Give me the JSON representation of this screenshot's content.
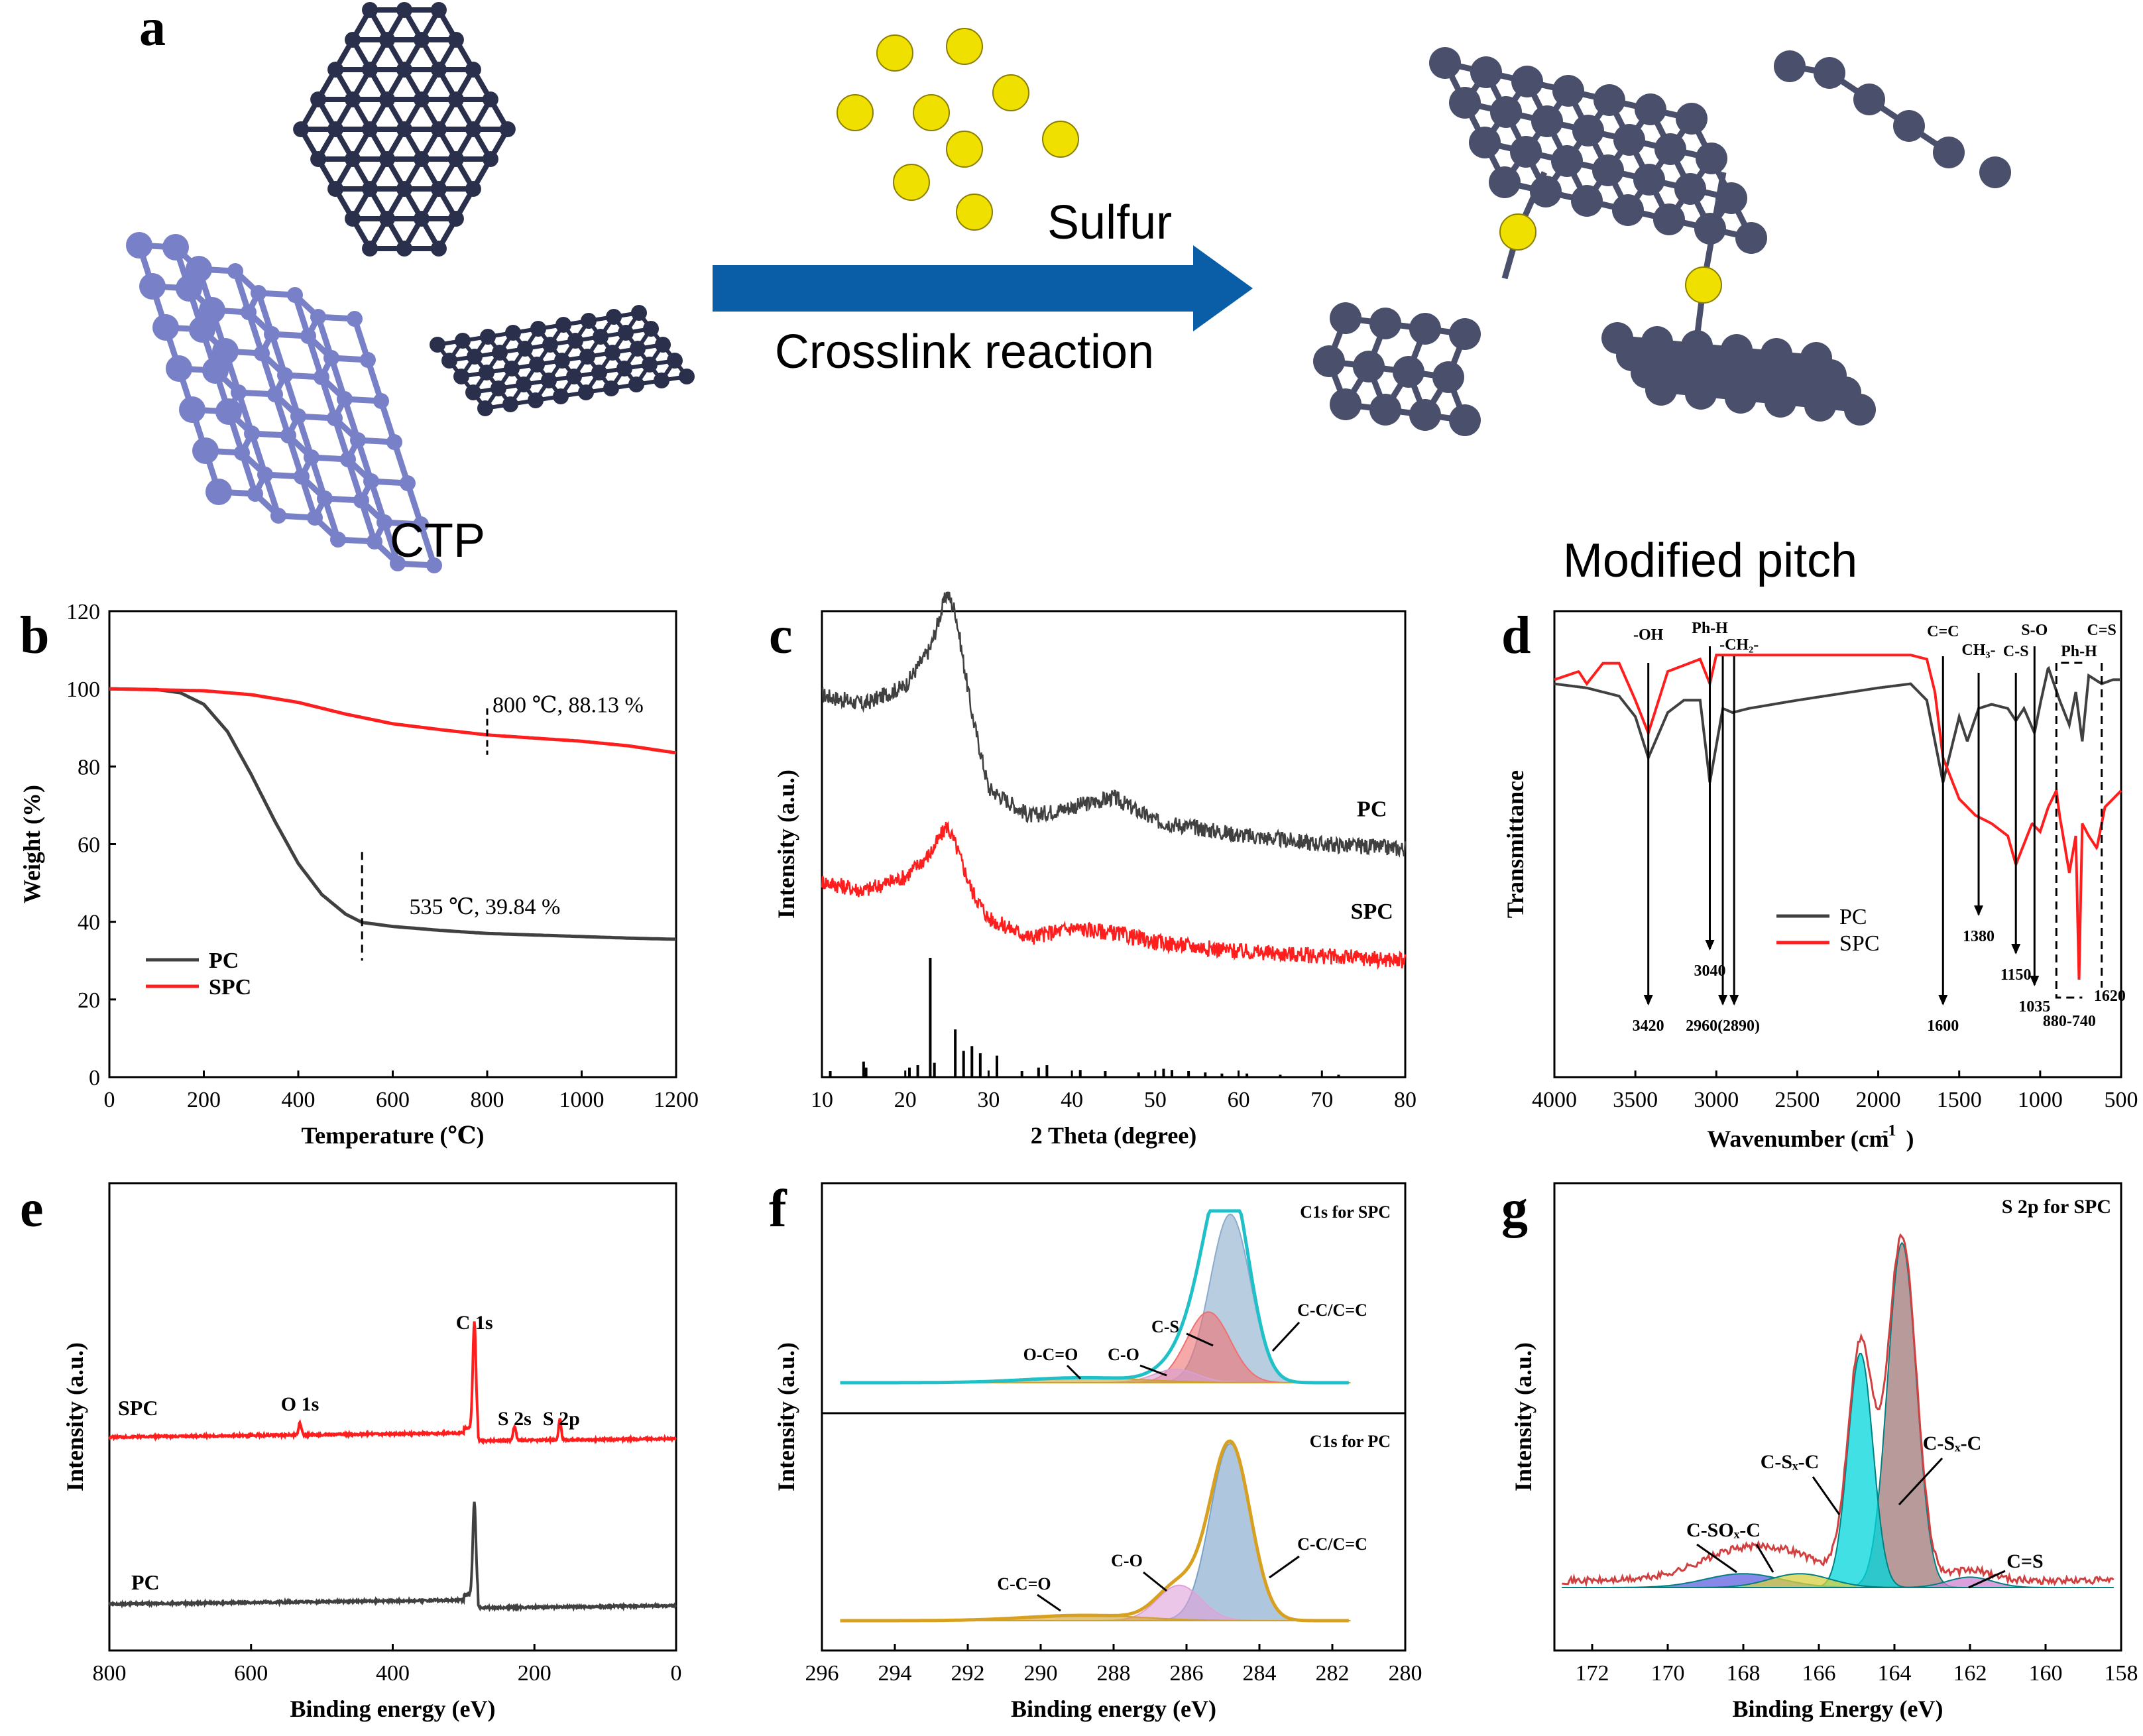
{
  "figure": {
    "panel_labels": [
      "a",
      "b",
      "c",
      "d",
      "e",
      "f",
      "g"
    ],
    "scheme": {
      "sulfur_label": "Sulfur",
      "reaction_label": "Crosslink reaction",
      "ctp_label": "CTP",
      "product_label": "Modified pitch",
      "colors": {
        "ctp_sheet": "#7880c8",
        "pitch_dark": "#2a2f4c",
        "modified": "#4a4f6c",
        "sulfur": "#f0e000",
        "arrow": "#0a5ea8"
      }
    }
  },
  "colors": {
    "pc": "#404040",
    "spc": "#ff1e1e"
  },
  "chart_data": [
    {
      "id": "b",
      "type": "line",
      "title": "",
      "xlabel": "Temperature (℃)",
      "ylabel": "Weight (%)",
      "xlim": [
        0,
        1200
      ],
      "ylim": [
        0,
        120
      ],
      "xticks": [
        0,
        200,
        400,
        600,
        800,
        1000,
        1200
      ],
      "yticks": [
        0,
        20,
        40,
        60,
        80,
        100,
        120
      ],
      "series": [
        {
          "name": "PC",
          "color": "#404040",
          "x": [
            0,
            100,
            150,
            200,
            250,
            300,
            350,
            400,
            450,
            500,
            535,
            600,
            700,
            800,
            900,
            1000,
            1100,
            1200
          ],
          "y": [
            100,
            99.8,
            99,
            96,
            89,
            78,
            66,
            55,
            47,
            42,
            39.84,
            38.8,
            37.8,
            37,
            36.6,
            36.2,
            35.8,
            35.5
          ]
        },
        {
          "name": "SPC",
          "color": "#ff1e1e",
          "x": [
            0,
            200,
            300,
            400,
            500,
            600,
            700,
            800,
            900,
            1000,
            1100,
            1200
          ],
          "y": [
            100,
            99.5,
            98.5,
            96.5,
            93.5,
            91,
            89.5,
            88.13,
            87.3,
            86.5,
            85.3,
            83.5
          ]
        }
      ],
      "annotations": [
        "800 ℃, 88.13 %",
        "535 ℃, 39.84 %"
      ],
      "legend": {
        "position": "bottom-left",
        "entries": [
          "PC",
          "SPC"
        ]
      }
    },
    {
      "id": "c",
      "type": "line",
      "title": "",
      "xlabel": "2 Theta (degree)",
      "ylabel": "Intensity (a.u.)",
      "xlim": [
        10,
        80
      ],
      "xticks": [
        10,
        20,
        30,
        40,
        50,
        60,
        70,
        80
      ],
      "series": [
        {
          "name": "PC",
          "color": "#404040",
          "x": [
            10,
            15,
            20,
            23,
            25,
            26,
            28,
            30,
            35,
            40,
            45,
            50,
            60,
            70,
            80
          ],
          "y": [
            0.82,
            0.8,
            0.84,
            0.92,
            1.04,
            1.0,
            0.78,
            0.62,
            0.56,
            0.58,
            0.6,
            0.55,
            0.52,
            0.5,
            0.49
          ]
        },
        {
          "name": "SPC",
          "color": "#ff1e1e",
          "x": [
            10,
            15,
            20,
            23,
            25,
            26,
            28,
            30,
            35,
            40,
            45,
            50,
            60,
            70,
            80
          ],
          "y": [
            0.42,
            0.4,
            0.43,
            0.48,
            0.54,
            0.5,
            0.4,
            0.34,
            0.3,
            0.32,
            0.31,
            0.29,
            0.27,
            0.26,
            0.25
          ]
        }
      ],
      "reference_peaks": {
        "x": [
          11,
          15,
          15.3,
          20.5,
          21.5,
          23,
          23.5,
          26,
          27,
          28,
          29,
          31,
          34,
          36,
          37,
          41,
          44,
          48,
          51,
          52,
          54,
          56,
          58,
          61,
          65,
          72
        ],
        "h": [
          0.05,
          0.13,
          0.08,
          0.08,
          0.1,
          1.0,
          0.12,
          0.4,
          0.22,
          0.26,
          0.2,
          0.18,
          0.05,
          0.08,
          0.1,
          0.06,
          0.05,
          0.04,
          0.07,
          0.06,
          0.05,
          0.04,
          0.03,
          0.03,
          0.02,
          0.02
        ]
      },
      "curve_labels": [
        "PC",
        "SPC"
      ]
    },
    {
      "id": "d",
      "type": "line",
      "title": "",
      "xlabel": "Wavenumber (cm",
      "xlabel_sup": "-1",
      "xlabel_end": ")",
      "ylabel": "Transmittance",
      "xlim": [
        4000,
        500
      ],
      "xticks": [
        4000,
        3500,
        3000,
        2500,
        2000,
        1500,
        1000,
        500
      ],
      "series": [
        {
          "name": "PC",
          "color": "#404040",
          "x": [
            4000,
            3800,
            3600,
            3500,
            3420,
            3300,
            3200,
            3100,
            3040,
            2960,
            2900,
            2800,
            2500,
            2000,
            1800,
            1700,
            1600,
            1500,
            1450,
            1380,
            1300,
            1200,
            1150,
            1100,
            1035,
            1000,
            950,
            880,
            820,
            780,
            740,
            700,
            620,
            550,
            500
          ],
          "y": [
            0.92,
            0.91,
            0.89,
            0.84,
            0.74,
            0.85,
            0.88,
            0.88,
            0.68,
            0.86,
            0.85,
            0.86,
            0.88,
            0.91,
            0.92,
            0.88,
            0.68,
            0.84,
            0.78,
            0.86,
            0.87,
            0.86,
            0.83,
            0.86,
            0.8,
            0.87,
            0.96,
            0.88,
            0.82,
            0.9,
            0.78,
            0.94,
            0.92,
            0.93,
            0.93
          ]
        },
        {
          "name": "SPC",
          "color": "#ff1e1e",
          "x": [
            4000,
            3850,
            3800,
            3700,
            3600,
            3500,
            3420,
            3300,
            3100,
            3040,
            3000,
            2500,
            2000,
            1800,
            1700,
            1650,
            1600,
            1500,
            1400,
            1300,
            1200,
            1150,
            1050,
            1000,
            950,
            900,
            880,
            820,
            780,
            760,
            740,
            700,
            650,
            600,
            500
          ],
          "y": [
            0.93,
            0.95,
            0.92,
            0.97,
            0.97,
            0.88,
            0.8,
            0.95,
            0.98,
            0.92,
            0.99,
            0.99,
            0.99,
            0.99,
            0.98,
            0.9,
            0.74,
            0.64,
            0.6,
            0.58,
            0.55,
            0.48,
            0.58,
            0.56,
            0.62,
            0.66,
            0.6,
            0.46,
            0.55,
            0.2,
            0.58,
            0.55,
            0.52,
            0.62,
            0.66
          ]
        }
      ],
      "peak_labels": [
        "-OH",
        "Ph-H",
        "-CH₂-",
        "C=C",
        "CH₃-",
        "C-S",
        "S-O",
        "Ph-H",
        "C=S"
      ],
      "peak_values": [
        "3420",
        "3040",
        "2960(2890)",
        "1600",
        "1380",
        "1150",
        "1035",
        "880-740",
        "1620"
      ],
      "legend": {
        "position": "middle-left",
        "entries": [
          "PC",
          "SPC"
        ]
      }
    },
    {
      "id": "e",
      "type": "line",
      "title": "",
      "xlabel": "Binding energy (eV)",
      "ylabel": "Intensity (a.u.)",
      "xlim": [
        800,
        0
      ],
      "xticks": [
        800,
        600,
        400,
        200,
        0
      ],
      "series": [
        {
          "name": "SPC",
          "color": "#ff1e1e",
          "peaks": {
            "O 1s": 531,
            "C 1s": 284.8,
            "S 2s": 228,
            "S 2p": 164
          }
        },
        {
          "name": "PC",
          "color": "#404040",
          "peaks": {
            "C 1s": 284.8
          }
        }
      ],
      "peak_labels": [
        "O 1s",
        "C 1s",
        "S 2s",
        "S 2p"
      ],
      "curve_labels": [
        "SPC",
        "PC"
      ]
    },
    {
      "id": "f",
      "type": "area",
      "title": "",
      "xlabel": "Binding energy (eV)",
      "ylabel": "Intensity (a.u.)",
      "xlim": [
        296,
        280
      ],
      "xticks": [
        296,
        294,
        292,
        290,
        288,
        286,
        284,
        282,
        280
      ],
      "subplots": [
        {
          "name": "C1s for SPC",
          "components": [
            {
              "label": "C-C/C=C",
              "center": 284.8,
              "height": 1.0,
              "color": "#8aabcc"
            },
            {
              "label": "C-S",
              "center": 285.4,
              "height": 0.42,
              "color": "#f07070"
            },
            {
              "label": "C-O",
              "center": 286.3,
              "height": 0.08,
              "color": "#d9a0d0"
            },
            {
              "label": "O-C=O",
              "center": 288.8,
              "height": 0.03,
              "color": "#cfa030"
            }
          ]
        },
        {
          "name": "C1s for PC",
          "components": [
            {
              "label": "C-C/C=C",
              "center": 284.8,
              "height": 1.0,
              "color": "#7aa2c8"
            },
            {
              "label": "C-O",
              "center": 286.2,
              "height": 0.2,
              "color": "#e0a0d8"
            },
            {
              "label": "C-C=O",
              "center": 288.8,
              "height": 0.03,
              "color": "#cfa030"
            }
          ]
        }
      ]
    },
    {
      "id": "g",
      "type": "area",
      "title": "S 2p for SPC",
      "xlabel": "Binding Energy (eV)",
      "ylabel": "Intensity (a.u.)",
      "xlim": [
        173,
        158
      ],
      "xticks": [
        172,
        170,
        168,
        166,
        164,
        162,
        160,
        158
      ],
      "components": [
        {
          "label": "C-Sₓ-C",
          "center": 163.8,
          "height": 1.0,
          "color": "#a07878"
        },
        {
          "label": "C-Sₓ-C",
          "center": 164.9,
          "height": 0.68,
          "color": "#00d6dc"
        },
        {
          "label": "C-SOₓ-C",
          "center": 168.0,
          "height": 0.04,
          "color": "#6060e0"
        },
        {
          "label": "C-SOₓ-C",
          "center": 166.5,
          "height": 0.04,
          "color": "#d8d040"
        },
        {
          "label": "C=S",
          "center": 162.0,
          "height": 0.03,
          "color": "#d080d0"
        }
      ]
    }
  ]
}
